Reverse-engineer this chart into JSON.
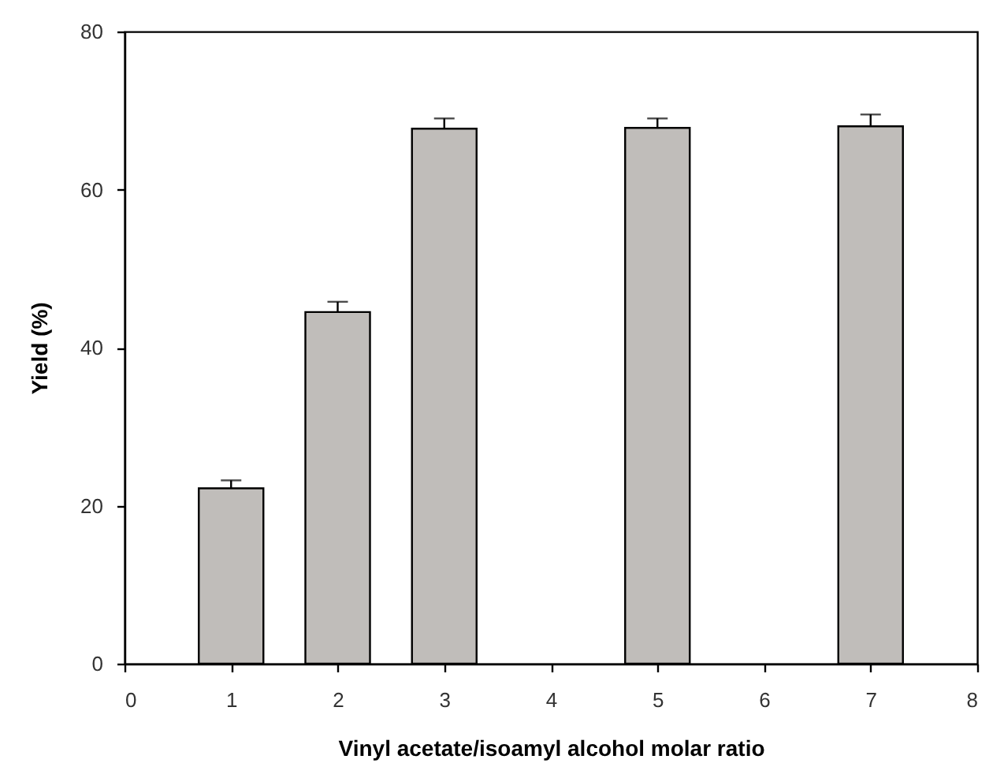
{
  "chart_data": {
    "type": "bar",
    "x": [
      1,
      2,
      3,
      5,
      7
    ],
    "values": [
      22.2,
      44.5,
      67.7,
      67.8,
      68.0
    ],
    "errors": [
      [
        22.2,
        23.2
      ],
      [
        44.5,
        45.8
      ],
      [
        67.7,
        69.0
      ],
      [
        67.8,
        69.0
      ],
      [
        68.0,
        69.5
      ]
    ],
    "color": "#c0bdba",
    "xlabel": "Vinyl acetate/isoamyl alcohol molar ratio",
    "ylabel": "Yield (%)",
    "xlim": [
      0,
      8
    ],
    "xticks": [
      0,
      1,
      2,
      3,
      4,
      5,
      6,
      7,
      8
    ],
    "ylim": [
      0,
      80
    ],
    "yticks": [
      0,
      20,
      40,
      60,
      80
    ]
  }
}
